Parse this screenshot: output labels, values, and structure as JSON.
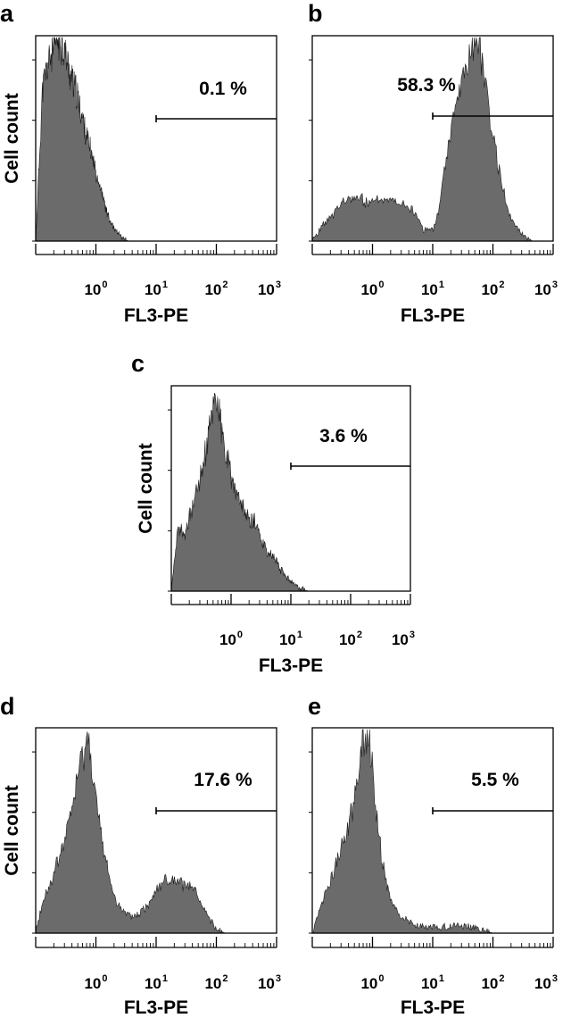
{
  "panels": [
    {
      "letter": "a",
      "marker_label": "0.1 %",
      "ylabel": "Cell count",
      "xlabel": "FL3-PE",
      "x_ticks": [
        {
          "base": "10",
          "exp": "0"
        },
        {
          "base": "10",
          "exp": "1"
        },
        {
          "base": "10",
          "exp": "2"
        },
        {
          "base": "10",
          "exp": "3"
        }
      ]
    },
    {
      "letter": "b",
      "marker_label": "58.3 %",
      "ylabel": "",
      "xlabel": "FL3-PE",
      "x_ticks": [
        {
          "base": "10",
          "exp": "0"
        },
        {
          "base": "10",
          "exp": "1"
        },
        {
          "base": "10",
          "exp": "2"
        },
        {
          "base": "10",
          "exp": "3"
        }
      ]
    },
    {
      "letter": "c",
      "marker_label": "3.6 %",
      "ylabel": "Cell count",
      "xlabel": "FL3-PE",
      "x_ticks": [
        {
          "base": "10",
          "exp": "0"
        },
        {
          "base": "10",
          "exp": "1"
        },
        {
          "base": "10",
          "exp": "2"
        },
        {
          "base": "10",
          "exp": "3"
        }
      ]
    },
    {
      "letter": "d",
      "marker_label": "17.6 %",
      "ylabel": "Cell count",
      "xlabel": "FL3-PE",
      "x_ticks": [
        {
          "base": "10",
          "exp": "0"
        },
        {
          "base": "10",
          "exp": "1"
        },
        {
          "base": "10",
          "exp": "2"
        },
        {
          "base": "10",
          "exp": "3"
        }
      ]
    },
    {
      "letter": "e",
      "marker_label": "5.5 %",
      "ylabel": "",
      "xlabel": "FL3-PE",
      "x_ticks": [
        {
          "base": "10",
          "exp": "0"
        },
        {
          "base": "10",
          "exp": "1"
        },
        {
          "base": "10",
          "exp": "2"
        },
        {
          "base": "10",
          "exp": "3"
        }
      ]
    }
  ],
  "colors": {
    "histogram_fill": "#6b6b6b",
    "axis": "#000000",
    "background": "#ffffff"
  },
  "chart_data": [
    {
      "type": "area",
      "panel": "a",
      "x_scale": "log10",
      "xlim": [
        0.1,
        1000
      ],
      "x_ticks": [
        1,
        10,
        100,
        1000
      ],
      "ylim": [
        0,
        100
      ],
      "marker": {
        "label": "0.1 %",
        "gate_start": 10
      },
      "series": [
        {
          "x": [
            0.1,
            0.13,
            0.17,
            0.2,
            0.24,
            0.3,
            0.35,
            0.4,
            0.5,
            0.6,
            0.75,
            0.9,
            1.05,
            1.3,
            1.6,
            2.0,
            2.4,
            3.0,
            3.5
          ],
          "y": [
            0,
            75,
            90,
            94,
            100,
            94,
            85,
            80,
            70,
            60,
            48,
            40,
            32,
            22,
            12,
            6,
            3,
            1,
            0
          ]
        }
      ]
    },
    {
      "type": "area",
      "panel": "b",
      "x_scale": "log10",
      "xlim": [
        0.1,
        1000
      ],
      "x_ticks": [
        1,
        10,
        100,
        1000
      ],
      "ylim": [
        0,
        100
      ],
      "marker": {
        "label": "58.3 %",
        "gate_start": 10
      },
      "series": [
        {
          "x": [
            0.1,
            0.13,
            0.2,
            0.3,
            0.5,
            0.8,
            1.2,
            2.0,
            3.0,
            5.0,
            7.0,
            10,
            12,
            15,
            20,
            30,
            40,
            50,
            60,
            80,
            100,
            150,
            200,
            300,
            450
          ],
          "y": [
            0,
            5,
            12,
            18,
            22,
            19,
            20,
            21,
            20,
            14,
            6,
            5,
            12,
            30,
            55,
            78,
            92,
            100,
            96,
            75,
            50,
            25,
            10,
            4,
            0
          ]
        }
      ]
    },
    {
      "type": "area",
      "panel": "c",
      "x_scale": "log10",
      "xlim": [
        0.1,
        1000
      ],
      "x_ticks": [
        1,
        10,
        100,
        1000
      ],
      "ylim": [
        0,
        100
      ],
      "marker": {
        "label": "3.6 %",
        "gate_start": 10
      },
      "series": [
        {
          "x": [
            0.1,
            0.13,
            0.17,
            0.22,
            0.28,
            0.35,
            0.45,
            0.55,
            0.65,
            0.8,
            1.0,
            1.3,
            1.7,
            2.0,
            2.5,
            3.2,
            4.0,
            5.5,
            7.0,
            9.0,
            11,
            13,
            15,
            20
          ],
          "y": [
            0,
            30,
            28,
            40,
            52,
            65,
            82,
            100,
            85,
            68,
            58,
            45,
            40,
            33,
            35,
            26,
            20,
            15,
            10,
            6,
            4,
            2,
            1,
            0
          ]
        }
      ]
    },
    {
      "type": "area",
      "panel": "d",
      "x_scale": "log10",
      "xlim": [
        0.1,
        1000
      ],
      "x_ticks": [
        1,
        10,
        100,
        1000
      ],
      "ylim": [
        0,
        100
      ],
      "marker": {
        "label": "17.6 %",
        "gate_start": 10
      },
      "series": [
        {
          "x": [
            0.1,
            0.13,
            0.18,
            0.25,
            0.35,
            0.45,
            0.55,
            0.7,
            0.8,
            0.95,
            1.1,
            1.4,
            2.0,
            3.0,
            4.5,
            7.0,
            10,
            14,
            20,
            28,
            35,
            45,
            60,
            80,
            100,
            140
          ],
          "y": [
            0,
            15,
            25,
            38,
            52,
            70,
            82,
            95,
            92,
            72,
            55,
            38,
            18,
            9,
            8,
            13,
            22,
            26,
            25,
            24,
            23,
            20,
            12,
            6,
            2,
            0
          ]
        }
      ]
    },
    {
      "type": "area",
      "panel": "e",
      "x_scale": "log10",
      "xlim": [
        0.1,
        1000
      ],
      "x_ticks": [
        1,
        10,
        100,
        1000
      ],
      "ylim": [
        0,
        100
      ],
      "marker": {
        "label": "5.5 %",
        "gate_start": 10
      },
      "series": [
        {
          "x": [
            0.1,
            0.13,
            0.18,
            0.25,
            0.35,
            0.45,
            0.55,
            0.65,
            0.75,
            0.85,
            1.0,
            1.2,
            1.5,
            2.0,
            3.0,
            5.0,
            8.0,
            15,
            25,
            40,
            60,
            80,
            100
          ],
          "y": [
            0,
            12,
            22,
            34,
            46,
            60,
            72,
            88,
            97,
            100,
            80,
            55,
            32,
            16,
            8,
            4,
            3,
            3,
            4,
            3,
            2,
            1,
            0
          ]
        }
      ]
    }
  ]
}
